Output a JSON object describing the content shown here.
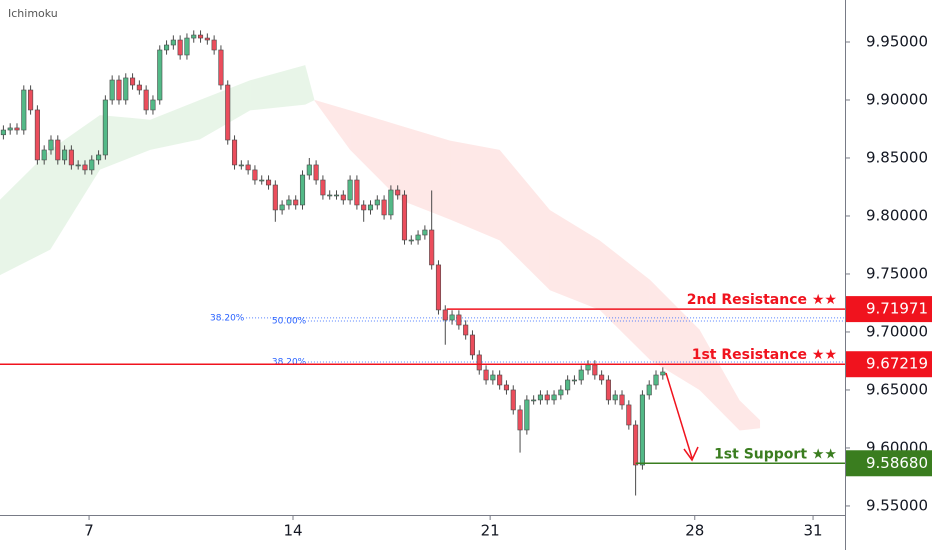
{
  "chart_data": {
    "type": "candlestick",
    "title": "Ichimoku",
    "up_color": "#53b987",
    "down_color": "#eb4d5c",
    "xlim": [
      -0.5,
      123.8
    ],
    "xticks": [
      {
        "value": 12.6,
        "label": "7"
      },
      {
        "value": 42.6,
        "label": "14"
      },
      {
        "value": 71.6,
        "label": "21"
      },
      {
        "value": 101.7,
        "label": "28"
      },
      {
        "value": 119.1,
        "label": "31"
      }
    ],
    "ylim": [
      9.5422,
      9.9862
    ],
    "yticks": [
      {
        "value": 9.55,
        "label": "9.55000"
      },
      {
        "value": 9.6,
        "label": "9.60000"
      },
      {
        "value": 9.65,
        "label": "9.65000"
      },
      {
        "value": 9.7,
        "label": "9.70000"
      },
      {
        "value": 9.75,
        "label": "9.75000"
      },
      {
        "value": 9.8,
        "label": "9.80000"
      },
      {
        "value": 9.85,
        "label": "9.85000"
      },
      {
        "value": 9.9,
        "label": "9.90000"
      },
      {
        "value": 9.95,
        "label": "9.95000"
      }
    ],
    "candles": [
      [
        9.87,
        9.8781,
        9.866,
        9.8741
      ],
      [
        9.8741,
        9.8799,
        9.8701,
        9.8759
      ],
      [
        9.8759,
        9.8799,
        9.8701,
        9.8741
      ],
      [
        9.8741,
        9.9126,
        9.8701,
        9.9086
      ],
      [
        9.9086,
        9.9126,
        9.8874,
        9.8914
      ],
      [
        9.8914,
        9.8954,
        9.8443,
        9.8483
      ],
      [
        9.8483,
        9.8609,
        9.8443,
        9.8569
      ],
      [
        9.8569,
        9.8695,
        9.8529,
        9.8655
      ],
      [
        9.8655,
        9.8695,
        9.8443,
        9.8483
      ],
      [
        9.8483,
        9.8609,
        9.8443,
        9.8569
      ],
      [
        9.8569,
        9.8609,
        9.84,
        9.844
      ],
      [
        9.844,
        9.848,
        9.84,
        9.844
      ],
      [
        9.844,
        9.848,
        9.8357,
        9.8397
      ],
      [
        9.8397,
        9.8523,
        9.8357,
        9.8483
      ],
      [
        9.8483,
        9.8566,
        9.8443,
        9.8526
      ],
      [
        9.8526,
        9.904,
        9.8486,
        9.9
      ],
      [
        9.9,
        9.9212,
        9.896,
        9.9172
      ],
      [
        9.9172,
        9.9212,
        9.896,
        9.9
      ],
      [
        9.9,
        9.923,
        9.896,
        9.919
      ],
      [
        9.919,
        9.923,
        9.9089,
        9.9129
      ],
      [
        9.9129,
        9.9169,
        9.9046,
        9.9086
      ],
      [
        9.9086,
        9.9126,
        9.8874,
        9.8914
      ],
      [
        9.8914,
        9.904,
        9.8874,
        9.9
      ],
      [
        9.9,
        9.9471,
        9.896,
        9.9431
      ],
      [
        9.9431,
        9.9514,
        9.9391,
        9.9474
      ],
      [
        9.9474,
        9.9557,
        9.9434,
        9.9517
      ],
      [
        9.9517,
        9.9557,
        9.9348,
        9.9388
      ],
      [
        9.9388,
        9.9574,
        9.9348,
        9.9534
      ],
      [
        9.9534,
        9.96,
        9.9494,
        9.956
      ],
      [
        9.956,
        9.96,
        9.9494,
        9.9534
      ],
      [
        9.9534,
        9.9574,
        9.9477,
        9.9517
      ],
      [
        9.9517,
        9.9557,
        9.9391,
        9.9431
      ],
      [
        9.9431,
        9.9471,
        9.9089,
        9.9129
      ],
      [
        9.9129,
        9.9169,
        9.8615,
        9.8655
      ],
      [
        9.8655,
        9.8695,
        9.84,
        9.844
      ],
      [
        9.844,
        9.848,
        9.84,
        9.844
      ],
      [
        9.844,
        9.848,
        9.8357,
        9.8397
      ],
      [
        9.8397,
        9.8437,
        9.827,
        9.831
      ],
      [
        9.831,
        9.835,
        9.827,
        9.831
      ],
      [
        9.831,
        9.835,
        9.8227,
        9.8267
      ],
      [
        9.8267,
        9.8307,
        9.795,
        9.8052
      ],
      [
        9.8052,
        9.8135,
        9.8012,
        9.8095
      ],
      [
        9.8095,
        9.8178,
        9.8055,
        9.8138
      ],
      [
        9.8138,
        9.8178,
        9.8055,
        9.8095
      ],
      [
        9.8095,
        9.8393,
        9.8055,
        9.8353
      ],
      [
        9.8353,
        9.85,
        9.8313,
        9.844
      ],
      [
        9.844,
        9.848,
        9.827,
        9.831
      ],
      [
        9.831,
        9.835,
        9.8141,
        9.8181
      ],
      [
        9.8181,
        9.8221,
        9.8141,
        9.8181
      ],
      [
        9.8181,
        9.8221,
        9.8141,
        9.8181
      ],
      [
        9.8181,
        9.8221,
        9.8098,
        9.8138
      ],
      [
        9.8138,
        9.835,
        9.8098,
        9.831
      ],
      [
        9.831,
        9.835,
        9.8055,
        9.8095
      ],
      [
        9.8095,
        9.8135,
        9.795,
        9.8052
      ],
      [
        9.8052,
        9.8135,
        9.8012,
        9.8095
      ],
      [
        9.8095,
        9.8178,
        9.8055,
        9.8138
      ],
      [
        9.8138,
        9.8178,
        9.7969,
        9.8009
      ],
      [
        9.8009,
        9.8264,
        9.7969,
        9.8224
      ],
      [
        9.8224,
        9.8264,
        9.8141,
        9.8181
      ],
      [
        9.8181,
        9.8221,
        9.7753,
        9.7793
      ],
      [
        9.7793,
        9.7833,
        9.7753,
        9.7793
      ],
      [
        9.7793,
        9.7876,
        9.7753,
        9.7836
      ],
      [
        9.7836,
        9.7919,
        9.7796,
        9.7879
      ],
      [
        9.7879,
        9.822,
        9.7538,
        9.7578
      ],
      [
        9.7578,
        9.7618,
        9.715,
        9.719
      ],
      [
        9.719,
        9.723,
        9.689,
        9.7103
      ],
      [
        9.7103,
        9.7187,
        9.7063,
        9.7147
      ],
      [
        9.7147,
        9.7187,
        9.702,
        9.706
      ],
      [
        9.706,
        9.71,
        9.6934,
        9.6974
      ],
      [
        9.6974,
        9.7014,
        9.6762,
        9.6802
      ],
      [
        9.6802,
        9.6842,
        9.6632,
        9.6672
      ],
      [
        9.6672,
        9.6712,
        9.6546,
        9.6586
      ],
      [
        9.6586,
        9.6669,
        9.6546,
        9.6629
      ],
      [
        9.6629,
        9.6669,
        9.6503,
        9.6543
      ],
      [
        9.6543,
        9.6583,
        9.646,
        9.65
      ],
      [
        9.65,
        9.654,
        9.6288,
        9.6328
      ],
      [
        9.6328,
        9.6368,
        9.596,
        9.6155
      ],
      [
        9.6155,
        9.6454,
        9.6115,
        9.6414
      ],
      [
        9.6414,
        9.6454,
        9.6374,
        9.6414
      ],
      [
        9.6414,
        9.6497,
        9.6374,
        9.6457
      ],
      [
        9.6457,
        9.6497,
        9.6374,
        9.6414
      ],
      [
        9.6414,
        9.6497,
        9.6374,
        9.6457
      ],
      [
        9.6457,
        9.654,
        9.6417,
        9.65
      ],
      [
        9.65,
        9.6626,
        9.646,
        9.6586
      ],
      [
        9.6586,
        9.6626,
        9.6546,
        9.6586
      ],
      [
        9.6586,
        9.6712,
        9.6546,
        9.6672
      ],
      [
        9.6672,
        9.6756,
        9.6632,
        9.6716
      ],
      [
        9.6716,
        9.6756,
        9.6589,
        9.6629
      ],
      [
        9.6629,
        9.6669,
        9.6546,
        9.6586
      ],
      [
        9.6586,
        9.6626,
        9.6374,
        9.6414
      ],
      [
        9.6414,
        9.6497,
        9.6374,
        9.6457
      ],
      [
        9.6457,
        9.6497,
        9.6331,
        9.6371
      ],
      [
        9.6371,
        9.6411,
        9.6158,
        9.6198
      ],
      [
        9.6198,
        9.6238,
        9.559,
        9.5853
      ],
      [
        9.5853,
        9.6497,
        9.5813,
        9.6457
      ],
      [
        9.6457,
        9.6583,
        9.6417,
        9.6543
      ],
      [
        9.6543,
        9.6669,
        9.6503,
        9.6629
      ],
      [
        9.6629,
        9.6695,
        9.6589,
        9.6655
      ]
    ],
    "cloud": {
      "up_color": "rgba(76,175,80,0.13)",
      "down_color": "rgba(244,67,54,0.12)",
      "x": [
        -0.5,
        6.9,
        14.2,
        21.6,
        28.9,
        36.3,
        44.4,
        45.8,
        51,
        58.3,
        65.7,
        73,
        80.4,
        87.7,
        95.1,
        102.4,
        108.3,
        111.3
      ],
      "a": [
        9.814,
        9.857,
        9.887,
        9.883,
        9.9,
        9.917,
        9.93,
        9.899,
        9.857,
        9.814,
        9.797,
        9.779,
        9.736,
        9.719,
        9.676,
        9.65,
        9.615,
        9.617
      ],
      "b": [
        9.749,
        9.771,
        9.84,
        9.857,
        9.866,
        9.891,
        9.896,
        9.9,
        9.891,
        9.878,
        9.865,
        9.857,
        9.805,
        9.779,
        9.745,
        9.702,
        9.641,
        9.624
      ]
    },
    "levels": [
      {
        "label": "2nd Resistance ★★",
        "value": 9.71971,
        "value_label": "9.71971",
        "x_start": 65.2,
        "color": "#f0131e"
      },
      {
        "label": "1st Resistance ★★",
        "value": 9.67219,
        "value_label": "9.67219",
        "x_start": -0.5,
        "color": "#f0131e"
      },
      {
        "label": "1st Support ★★",
        "value": 9.5868,
        "value_label": "9.58680",
        "x_start": 93.0,
        "color": "#3a7d1f"
      }
    ],
    "fibs": [
      {
        "label": "38.20%",
        "value": 9.7121,
        "x_start": 30.4
      },
      {
        "label": "50.00%",
        "value": 9.7095,
        "x_start": 39.5
      },
      {
        "label": "38.20%",
        "value": 9.6741,
        "x_start": 39.5
      }
    ],
    "fib_color": "#2962ff"
  }
}
